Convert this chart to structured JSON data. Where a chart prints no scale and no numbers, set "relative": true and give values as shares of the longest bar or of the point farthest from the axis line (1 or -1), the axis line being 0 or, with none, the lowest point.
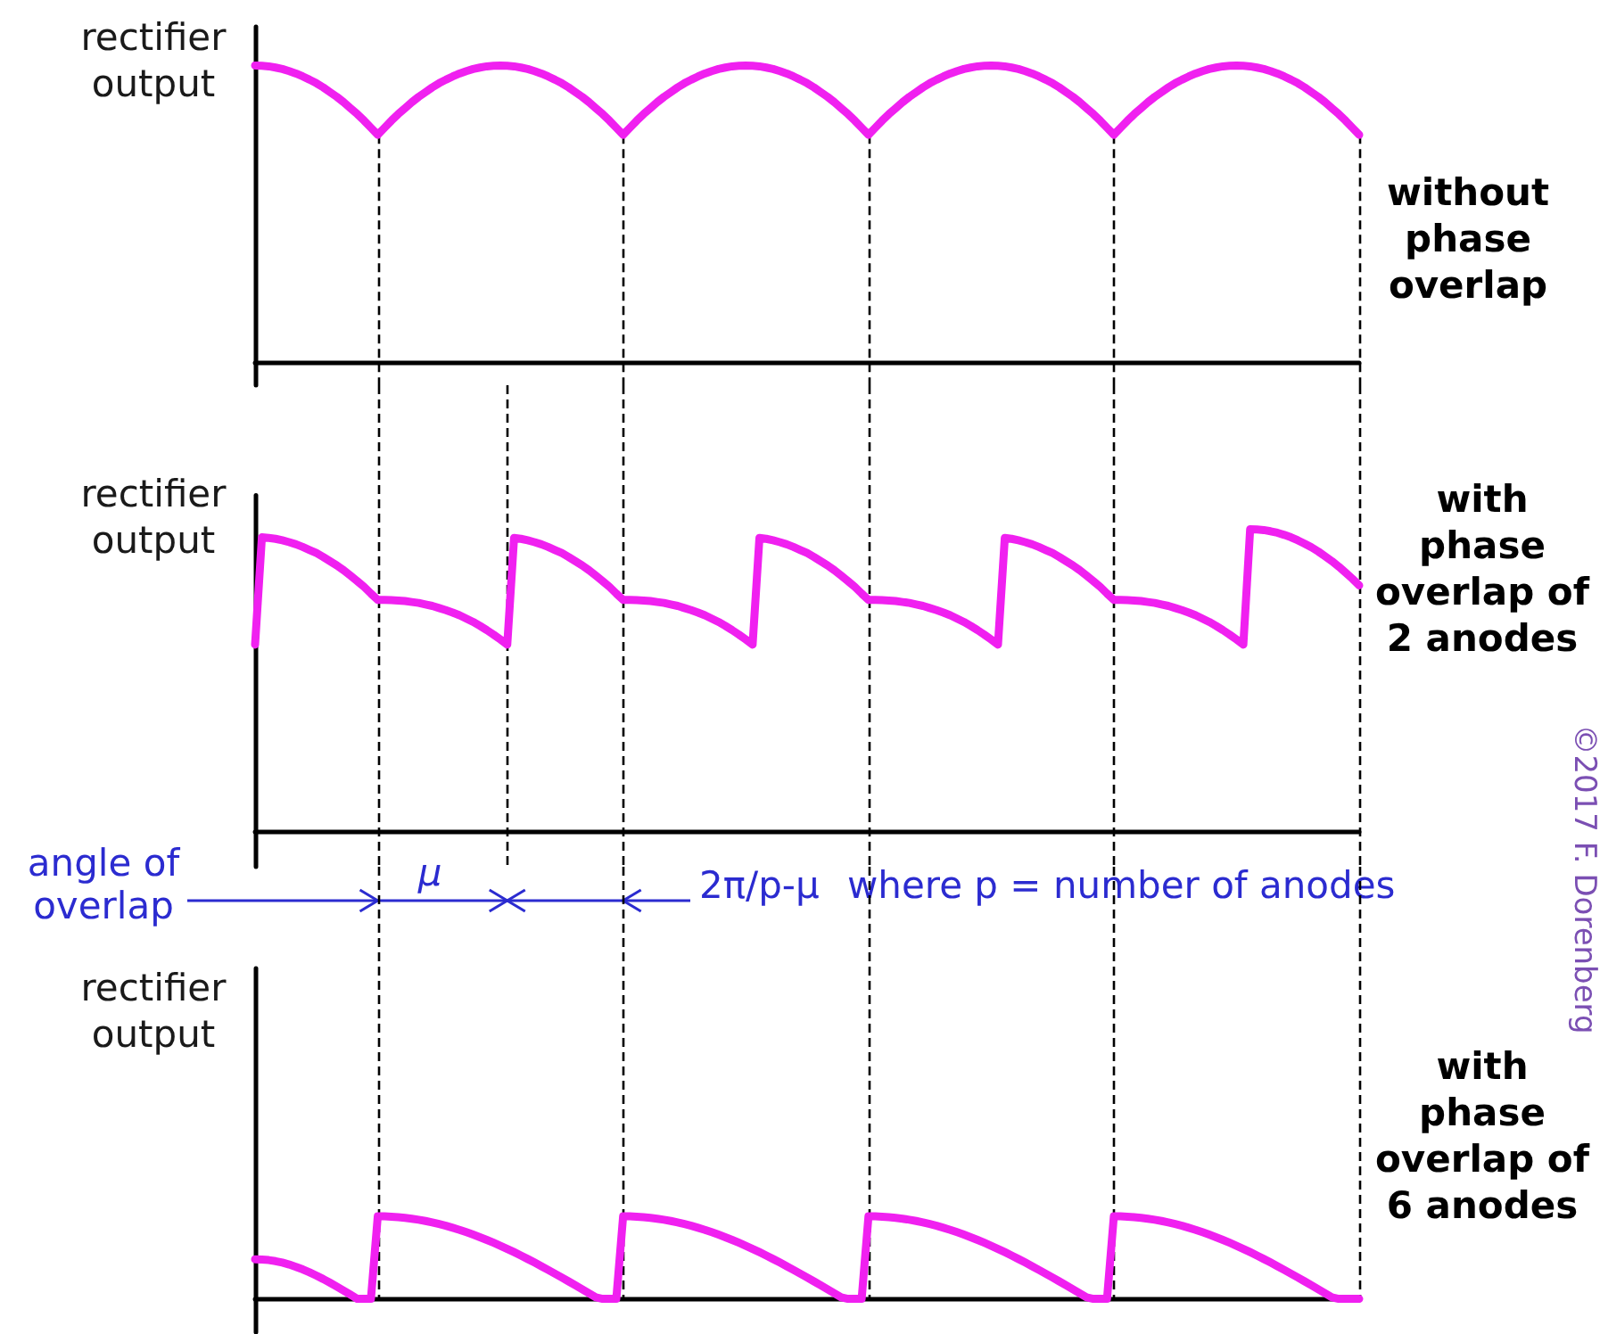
{
  "chart_data": [
    {
      "type": "line",
      "ylabel": "rectifier output",
      "annotations": [
        "without phase overlap"
      ],
      "relative": true,
      "categories": [
        null,
        null,
        null,
        null,
        null,
        null,
        null,
        null,
        null,
        null,
        null,
        null,
        null,
        null,
        null,
        null,
        null,
        null,
        null,
        null,
        null,
        null,
        null,
        null,
        null,
        null,
        null,
        null,
        null,
        null,
        null,
        null,
        null,
        null,
        null,
        null,
        null,
        null,
        null,
        null,
        null,
        null,
        null,
        null,
        null,
        null,
        null,
        null,
        null,
        null,
        null,
        null,
        null,
        null,
        null,
        null,
        null,
        null,
        null,
        null,
        null,
        null,
        null,
        null,
        null,
        null,
        null,
        null,
        null,
        null,
        null,
        null,
        null,
        null,
        null,
        null,
        null,
        null,
        null,
        null,
        null,
        null,
        null,
        null,
        null,
        null,
        null,
        null,
        null,
        null,
        null,
        null,
        null,
        null,
        null,
        null,
        null,
        null,
        null,
        null,
        null,
        null,
        null,
        null,
        null,
        null,
        null,
        null,
        null,
        null,
        null,
        null,
        null,
        null,
        null,
        null,
        null,
        null,
        null,
        null,
        null,
        null,
        null,
        null,
        null,
        null,
        null,
        null,
        null,
        null,
        null,
        null,
        null,
        null,
        null,
        null,
        null,
        null,
        null,
        null,
        null,
        null,
        null,
        null,
        null,
        null,
        null,
        null,
        null,
        null,
        null,
        null,
        null,
        null,
        null,
        null,
        null,
        null,
        null,
        null,
        null,
        null,
        null
      ],
      "series": [
        {
          "color": "#f020f0",
          "values": [
            1,
            0.999,
            0.997,
            0.993,
            0.988,
            0.981,
            0.973,
            0.963,
            0.952,
            0.94,
            0.926,
            0.91,
            0.894,
            0.876,
            0.856,
            0.836,
            0.814,
            0.79,
            0.766,
            0.79,
            0.814,
            0.836,
            0.856,
            0.876,
            0.894,
            0.91,
            0.926,
            0.94,
            0.952,
            0.963,
            0.973,
            0.981,
            0.988,
            0.993,
            0.997,
            0.999,
            1,
            0.999,
            0.997,
            0.993,
            0.988,
            0.981,
            0.973,
            0.963,
            0.952,
            0.94,
            0.926,
            0.91,
            0.894,
            0.876,
            0.856,
            0.836,
            0.814,
            0.79,
            0.766,
            0.79,
            0.814,
            0.836,
            0.856,
            0.876,
            0.894,
            0.91,
            0.926,
            0.94,
            0.952,
            0.963,
            0.973,
            0.981,
            0.988,
            0.993,
            0.997,
            0.999,
            1,
            0.999,
            0.997,
            0.993,
            0.988,
            0.981,
            0.973,
            0.963,
            0.952,
            0.94,
            0.926,
            0.91,
            0.894,
            0.876,
            0.856,
            0.836,
            0.814,
            0.79,
            0.766,
            0.79,
            0.814,
            0.836,
            0.856,
            0.876,
            0.894,
            0.91,
            0.926,
            0.94,
            0.952,
            0.963,
            0.973,
            0.981,
            0.988,
            0.993,
            0.997,
            0.999,
            1,
            0.999,
            0.997,
            0.993,
            0.988,
            0.981,
            0.973,
            0.963,
            0.952,
            0.94,
            0.926,
            0.91,
            0.894,
            0.876,
            0.856,
            0.836,
            0.814,
            0.79,
            0.766,
            0.79,
            0.814,
            0.836,
            0.856,
            0.876,
            0.894,
            0.91,
            0.926,
            0.94,
            0.952,
            0.963,
            0.973,
            0.981,
            0.988,
            0.993,
            0.997,
            0.999,
            1,
            0.999,
            0.997,
            0.993,
            0.988,
            0.981,
            0.973,
            0.963,
            0.952,
            0.94,
            0.926,
            0.91,
            0.894,
            0.876,
            0.856,
            0.836,
            0.814,
            0.79,
            0.766
          ]
        }
      ]
    },
    {
      "type": "line",
      "ylabel": "rectifier output",
      "annotations": [
        "with phase overlap of 2 anodes",
        "angle of overlap",
        "μ",
        "2π/p-μ",
        "where p = number of anodes",
        "©2017 F. Dorenberg"
      ],
      "relative": true,
      "categories": [
        null,
        null,
        null,
        null,
        null,
        null,
        null,
        null,
        null,
        null,
        null,
        null,
        null,
        null,
        null,
        null,
        null,
        null,
        null,
        null,
        null,
        null,
        null,
        null,
        null,
        null,
        null,
        null,
        null,
        null,
        null,
        null,
        null,
        null,
        null,
        null,
        null,
        null,
        null,
        null,
        null,
        null,
        null,
        null,
        null,
        null,
        null,
        null,
        null,
        null,
        null,
        null,
        null,
        null,
        null,
        null,
        null,
        null,
        null,
        null,
        null,
        null,
        null,
        null,
        null,
        null,
        null,
        null,
        null,
        null,
        null,
        null,
        null,
        null,
        null,
        null,
        null,
        null,
        null,
        null,
        null,
        null,
        null,
        null,
        null,
        null,
        null,
        null,
        null,
        null,
        null,
        null,
        null,
        null,
        null,
        null,
        null,
        null,
        null,
        null,
        null,
        null,
        null,
        null,
        null,
        null,
        null,
        null,
        null,
        null,
        null,
        null,
        null,
        null,
        null,
        null,
        null,
        null,
        null,
        null,
        null,
        null,
        null,
        null,
        null,
        null,
        null,
        null,
        null,
        null,
        null,
        null,
        null,
        null,
        null,
        null,
        null,
        null,
        null,
        null,
        null,
        null,
        null,
        null,
        null,
        null,
        null,
        null,
        null,
        null,
        null,
        null,
        null,
        null,
        null,
        null,
        null,
        null,
        null,
        null,
        null,
        null,
        null
      ],
      "series": [
        {
          "color": "#f020f0",
          "values": [
            0.618,
            0.973,
            0.971,
            0.968,
            0.963,
            0.957,
            0.95,
            0.941,
            0.931,
            0.921,
            0.908,
            0.894,
            0.88,
            0.864,
            0.846,
            0.828,
            0.809,
            0.787,
            0.766,
            0.766,
            0.765,
            0.764,
            0.762,
            0.759,
            0.756,
            0.751,
            0.746,
            0.739,
            0.732,
            0.724,
            0.715,
            0.704,
            0.693,
            0.68,
            0.666,
            0.651,
            0.635,
            0.618,
            0.971,
            0.968,
            0.963,
            0.957,
            0.95,
            0.941,
            0.931,
            0.921,
            0.908,
            0.894,
            0.88,
            0.864,
            0.846,
            0.828,
            0.809,
            0.787,
            0.766,
            0.766,
            0.765,
            0.764,
            0.762,
            0.759,
            0.756,
            0.751,
            0.746,
            0.739,
            0.732,
            0.724,
            0.715,
            0.704,
            0.693,
            0.68,
            0.666,
            0.651,
            0.635,
            0.618,
            0.971,
            0.968,
            0.963,
            0.957,
            0.95,
            0.941,
            0.931,
            0.921,
            0.908,
            0.894,
            0.88,
            0.864,
            0.846,
            0.828,
            0.809,
            0.787,
            0.766,
            0.766,
            0.765,
            0.764,
            0.762,
            0.759,
            0.756,
            0.751,
            0.746,
            0.739,
            0.732,
            0.724,
            0.715,
            0.704,
            0.693,
            0.68,
            0.666,
            0.651,
            0.635,
            0.618,
            0.971,
            0.968,
            0.963,
            0.957,
            0.95,
            0.941,
            0.931,
            0.921,
            0.908,
            0.894,
            0.88,
            0.864,
            0.846,
            0.828,
            0.809,
            0.787,
            0.766,
            0.766,
            0.765,
            0.764,
            0.762,
            0.759,
            0.756,
            0.751,
            0.746,
            0.739,
            0.732,
            0.724,
            0.715,
            0.704,
            0.693,
            0.68,
            0.666,
            0.651,
            0.635,
            0.618,
            1,
            0.999,
            0.997,
            0.993,
            0.988,
            0.981,
            0.973,
            0.963,
            0.952,
            0.94,
            0.926,
            0.91,
            0.894,
            0.876,
            0.856,
            0.836,
            0.814
          ]
        }
      ]
    },
    {
      "type": "line",
      "ylabel": "rectifier output",
      "annotations": [
        "with phase overlap of 6 anodes"
      ],
      "relative": true,
      "categories": [
        null,
        null,
        null,
        null,
        null,
        null,
        null,
        null,
        null,
        null,
        null,
        null,
        null,
        null,
        null,
        null,
        null,
        null,
        null,
        null,
        null,
        null,
        null,
        null,
        null,
        null,
        null,
        null,
        null,
        null,
        null,
        null,
        null,
        null,
        null,
        null,
        null,
        null,
        null,
        null,
        null,
        null,
        null,
        null,
        null,
        null,
        null,
        null,
        null,
        null,
        null,
        null,
        null,
        null,
        null,
        null,
        null,
        null,
        null,
        null,
        null,
        null,
        null,
        null,
        null,
        null,
        null,
        null,
        null,
        null,
        null,
        null,
        null,
        null,
        null,
        null,
        null,
        null,
        null,
        null,
        null,
        null,
        null,
        null,
        null,
        null,
        null,
        null,
        null,
        null,
        null,
        null,
        null,
        null,
        null,
        null,
        null,
        null,
        null,
        null,
        null,
        null,
        null,
        null,
        null,
        null,
        null,
        null,
        null,
        null,
        null,
        null,
        null,
        null,
        null,
        null,
        null,
        null,
        null,
        null,
        null,
        null,
        null,
        null,
        null,
        null,
        null,
        null,
        null,
        null,
        null,
        null,
        null,
        null,
        null,
        null,
        null,
        null,
        null,
        null,
        null,
        null,
        null,
        null,
        null,
        null,
        null,
        null,
        null,
        null,
        null,
        null,
        null,
        null,
        null,
        null,
        null,
        null,
        null,
        null,
        null,
        null,
        null
      ],
      "series": [
        {
          "color": "#f020f0",
          "values": [
            0.48,
            0.477,
            0.47,
            0.457,
            0.439,
            0.416,
            0.388,
            0.357,
            0.321,
            0.282,
            0.24,
            0.195,
            0.148,
            0.1,
            0.05,
            0,
            0,
            0,
            1,
            0.999,
            0.995,
            0.989,
            0.981,
            0.971,
            0.958,
            0.943,
            0.926,
            0.906,
            0.885,
            0.861,
            0.836,
            0.808,
            0.778,
            0.747,
            0.714,
            0.679,
            0.643,
            0.605,
            0.566,
            0.525,
            0.483,
            0.44,
            0.396,
            0.351,
            0.305,
            0.259,
            0.212,
            0.164,
            0.116,
            0.068,
            0.019,
            0,
            0,
            0,
            1,
            0.999,
            0.995,
            0.989,
            0.981,
            0.971,
            0.958,
            0.943,
            0.926,
            0.906,
            0.885,
            0.861,
            0.836,
            0.808,
            0.778,
            0.747,
            0.714,
            0.679,
            0.643,
            0.605,
            0.566,
            0.525,
            0.483,
            0.44,
            0.396,
            0.351,
            0.305,
            0.259,
            0.212,
            0.164,
            0.116,
            0.068,
            0.019,
            0,
            0,
            0,
            1,
            0.999,
            0.995,
            0.989,
            0.981,
            0.971,
            0.958,
            0.943,
            0.926,
            0.906,
            0.885,
            0.861,
            0.836,
            0.808,
            0.778,
            0.747,
            0.714,
            0.679,
            0.643,
            0.605,
            0.566,
            0.525,
            0.483,
            0.44,
            0.396,
            0.351,
            0.305,
            0.259,
            0.212,
            0.164,
            0.116,
            0.068,
            0.019,
            0,
            0,
            0,
            1,
            0.999,
            0.995,
            0.989,
            0.981,
            0.971,
            0.958,
            0.943,
            0.926,
            0.906,
            0.885,
            0.861,
            0.836,
            0.808,
            0.778,
            0.747,
            0.714,
            0.679,
            0.643,
            0.605,
            0.566,
            0.525,
            0.483,
            0.44,
            0.396,
            0.351,
            0.305,
            0.259,
            0.212,
            0.164,
            0.116,
            0.068,
            0.019,
            0,
            0,
            0,
            0
          ]
        }
      ]
    }
  ]
}
